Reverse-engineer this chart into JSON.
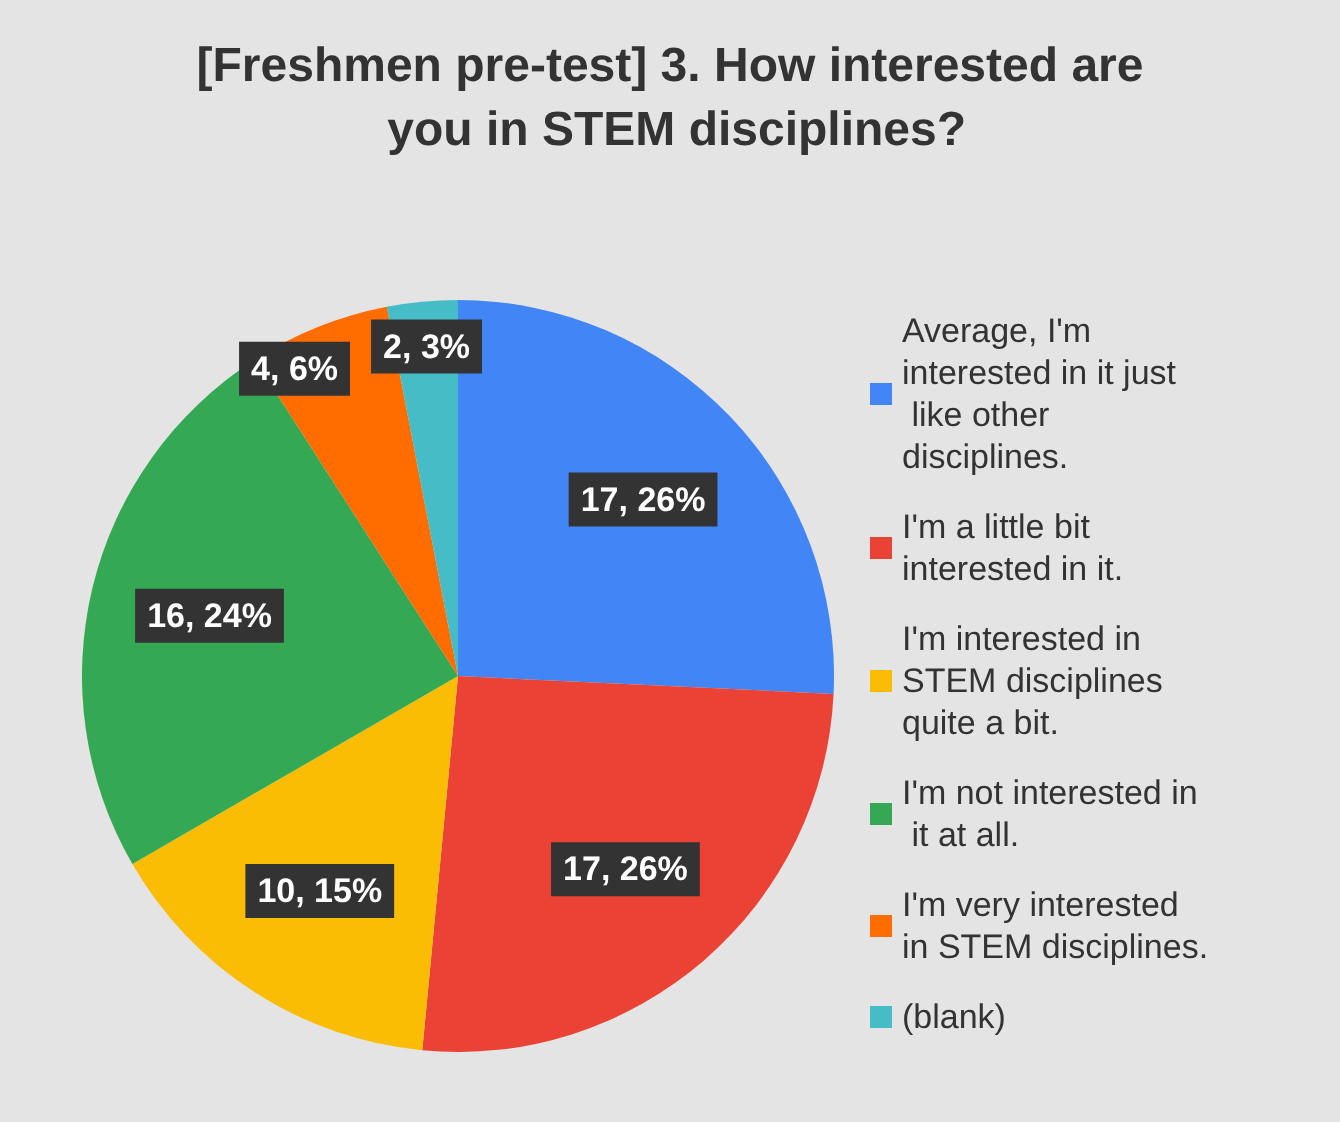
{
  "chart_data": {
    "type": "pie",
    "title": "[Freshmen pre-test] 3. How interested are you in STEM disciplines?",
    "categories": [
      "Average, I'm interested in it just like other disciplines.",
      "I'm a little bit interested in it.",
      "I'm interested in STEM disciplines quite a bit.",
      "I'm not interested in it at all.",
      "I'm very interested in STEM disciplines.",
      "(blank)"
    ],
    "values": [
      17,
      17,
      10,
      16,
      4,
      2
    ],
    "value_labels": [
      "17, 26%",
      "17, 26%",
      "10, 15%",
      "16, 24%",
      "4, 6%",
      "2, 3%"
    ],
    "colors": [
      "#4285f4",
      "#ea4335",
      "#fbbc04",
      "#34a853",
      "#ff6d01",
      "#46bdc6"
    ],
    "legend": "right"
  }
}
